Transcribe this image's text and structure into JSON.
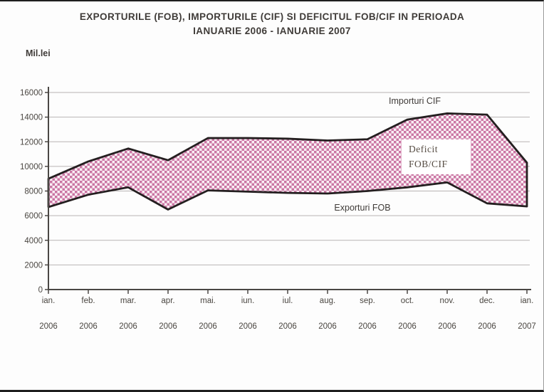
{
  "frame": {
    "title_line1": "EXPORTURILE (FOB), IMPORTURILE (CIF) SI DEFICITUL FOB/CIF IN PERIOADA",
    "title_line2": "IANUARIE 2006 - IANUARIE 2007",
    "y_axis_unit": "Mil.lei"
  },
  "chart_data": {
    "type": "area",
    "title": "EXPORTURILE (FOB), IMPORTURILE (CIF) SI DEFICITUL FOB/CIF IN PERIOADA IANUARIE 2006 - IANUARIE 2007",
    "ylabel": "Mil.lei",
    "xlabel": "",
    "ylim": [
      0,
      16000
    ],
    "y_ticks": [
      0,
      2000,
      4000,
      6000,
      8000,
      10000,
      12000,
      14000,
      16000
    ],
    "grid": true,
    "legend_position": "none",
    "categories_month": [
      "ian.",
      "feb.",
      "mar.",
      "apr.",
      "mai.",
      "iun.",
      "iul.",
      "aug.",
      "sep.",
      "oct.",
      "nov.",
      "dec.",
      "ian."
    ],
    "categories_year": [
      "2006",
      "2006",
      "2006",
      "2006",
      "2006",
      "2006",
      "2006",
      "2006",
      "2006",
      "2006",
      "2006",
      "2006",
      "2007"
    ],
    "series": [
      {
        "name": "Importuri CIF",
        "values": [
          9000,
          10400,
          11450,
          10500,
          12300,
          12300,
          12250,
          12100,
          12200,
          13800,
          14300,
          14200,
          10300
        ]
      },
      {
        "name": "Exporturi FOB",
        "values": [
          6700,
          7700,
          8300,
          6500,
          8050,
          7950,
          7850,
          7800,
          8000,
          8300,
          8700,
          7000,
          6750
        ]
      }
    ],
    "band_meaning": "Deficit FOB/CIF (area between Importuri CIF and Exporturi FOB)",
    "annotations": {
      "imports_label": "Importuri CIF",
      "exports_label": "Exporturi FOB",
      "deficit_label_line1": "Deficit",
      "deficit_label_line2": "FOB/CIF"
    },
    "colors": {
      "band_checker_pink": "#cb76a4",
      "band_checker_light": "#f9f0f5",
      "band_outline": "#241f20",
      "gridline": "#b8b4b4",
      "axis": "#4a4744",
      "tick_text": "#4a4641"
    }
  }
}
